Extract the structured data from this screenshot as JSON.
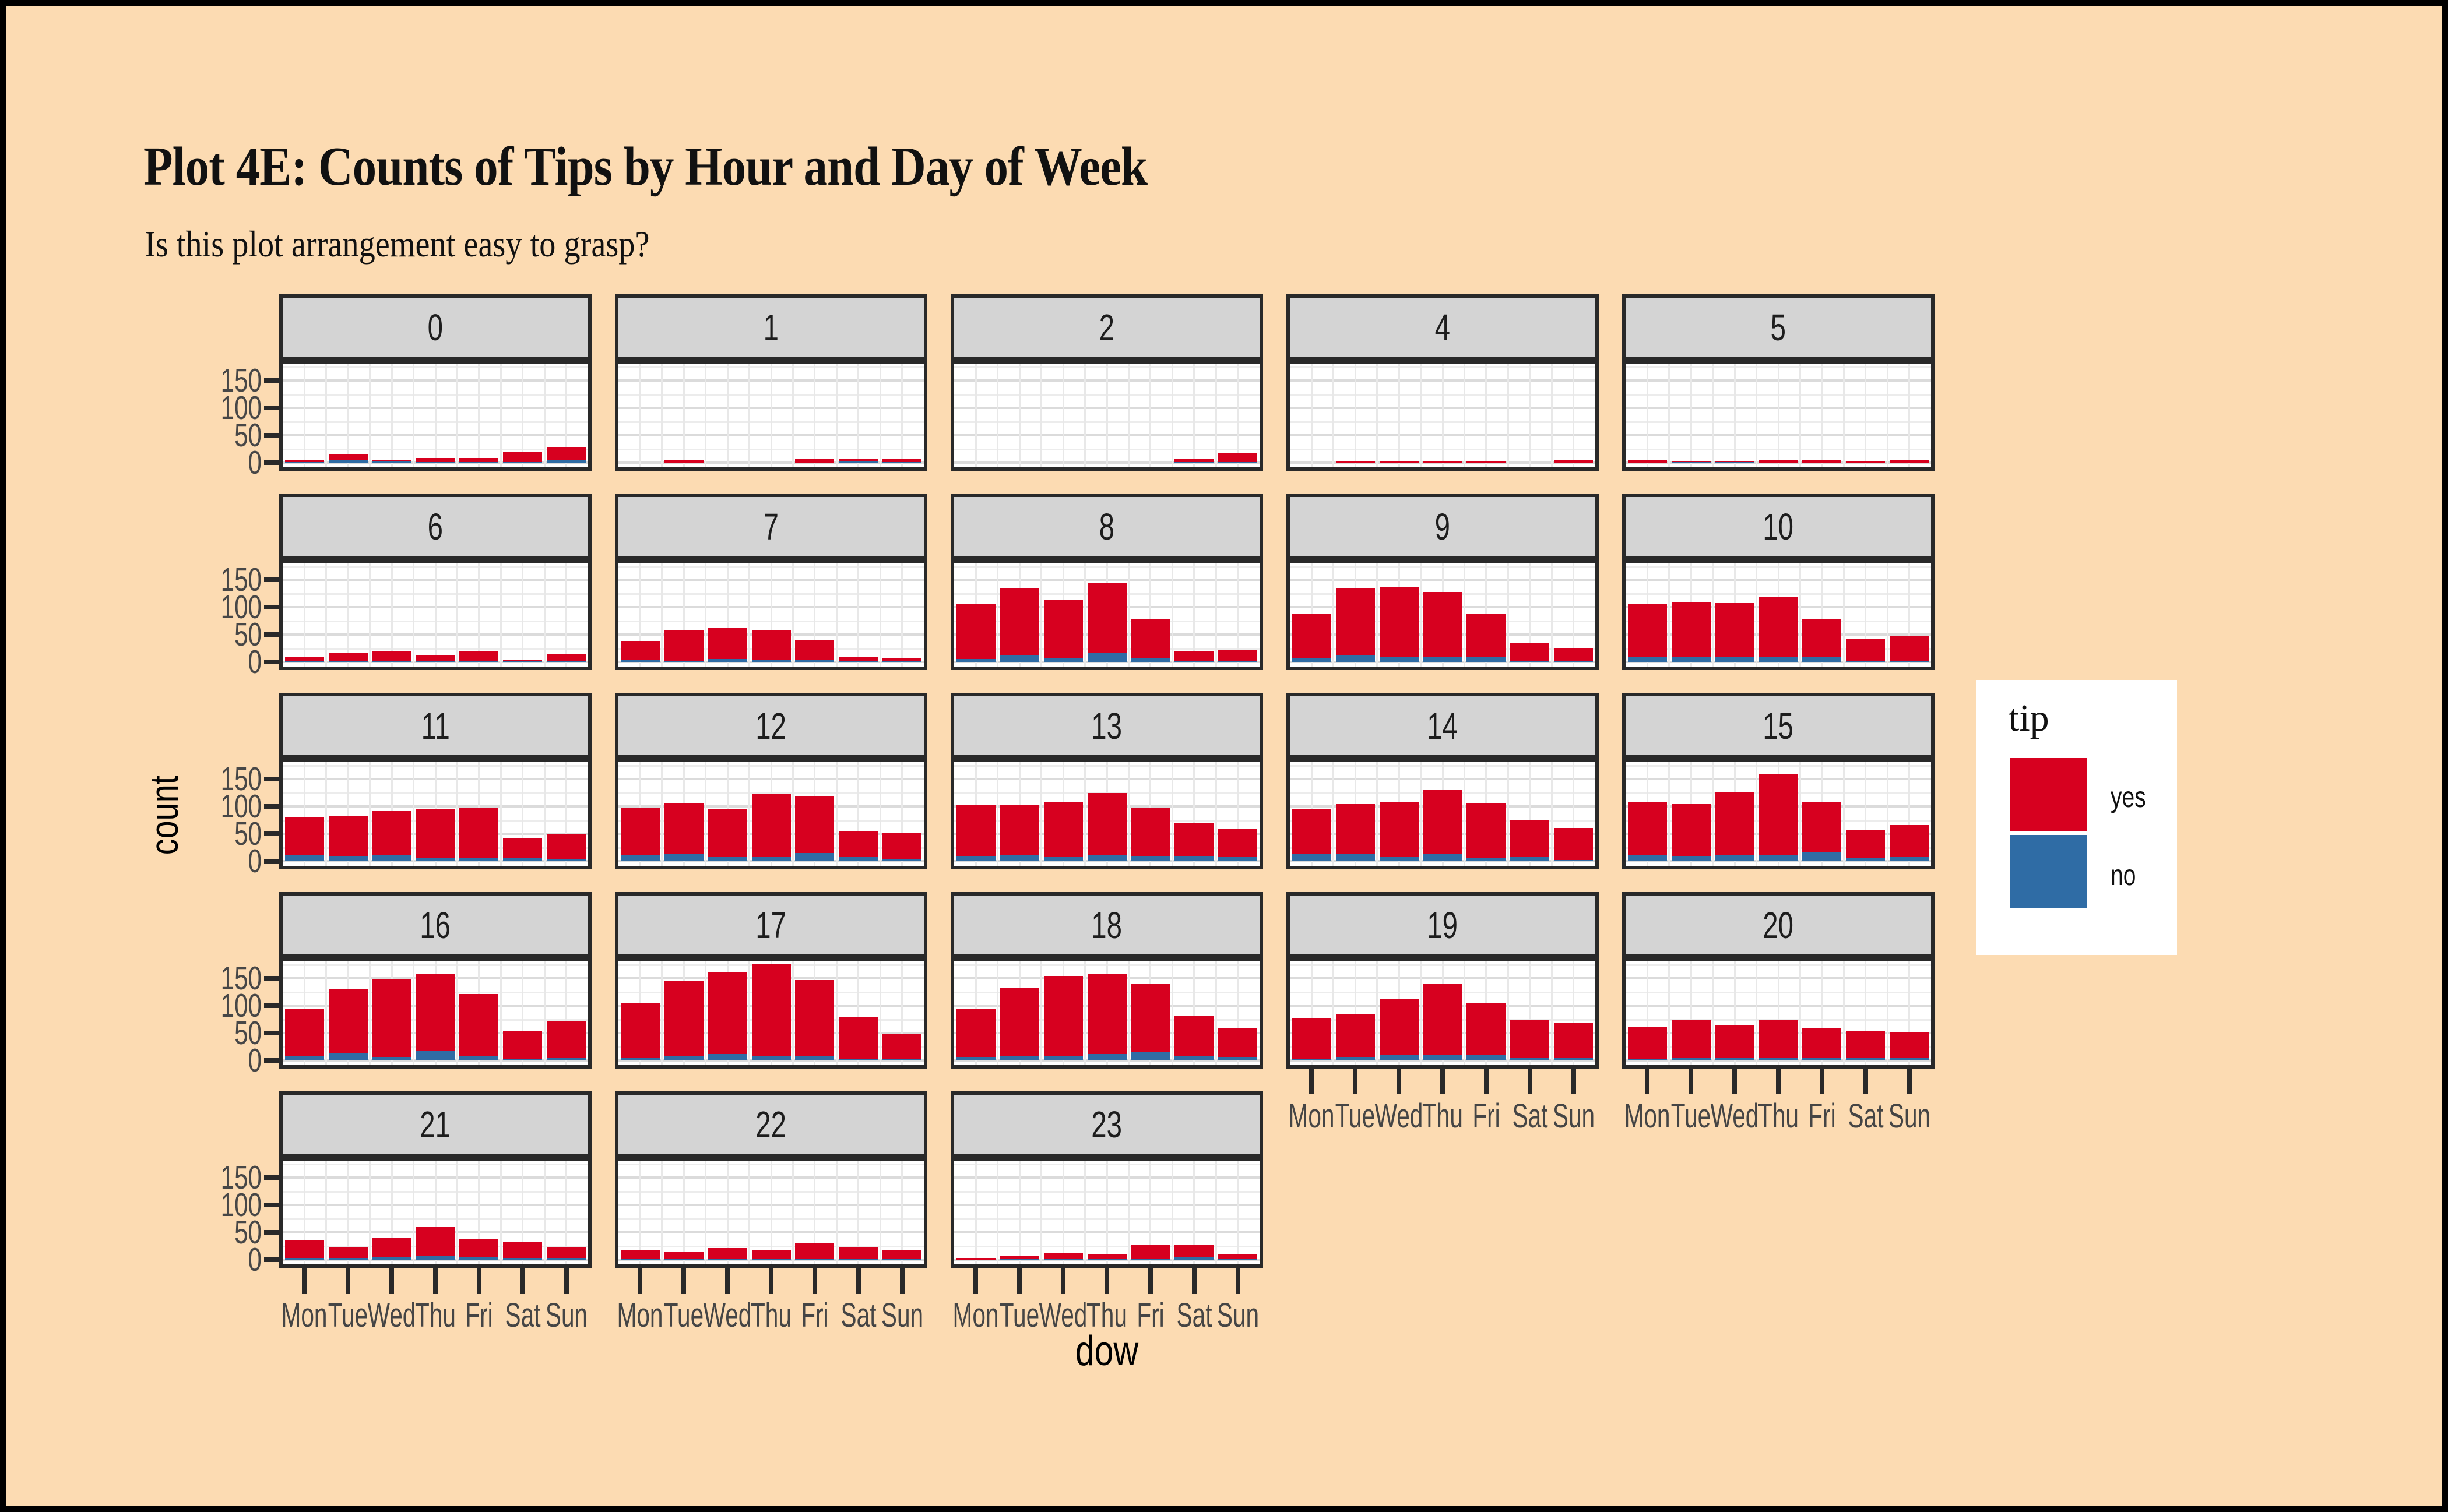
{
  "title": "Plot 4E: Counts of Tips by Hour and Day of Week",
  "subtitle": "Is this plot arrangement easy to grasp?",
  "axes": {
    "x_label": "dow",
    "y_label": "count",
    "y_ticks": [
      150,
      100,
      50,
      0
    ],
    "x_tick_labels": [
      "Mon",
      "Tue",
      "Wed",
      "Thu",
      "Fri",
      "Sat",
      "Sun"
    ]
  },
  "legend": {
    "title": "tip",
    "entries": [
      {
        "label": "yes",
        "color": "#D7001F"
      },
      {
        "label": "no",
        "color": "#2F6CA5"
      }
    ]
  },
  "colors": {
    "background": "#FCDBB2",
    "frame": "#000000",
    "strip_bg": "#D4D4D4",
    "panel_bg": "#FFFFFF",
    "panel_border": "#292929",
    "grid_major": "#DBDBDB",
    "grid_minor": "#ECECEC",
    "tick_label": "#474747",
    "yes": "#D7001F",
    "no": "#2F6CA5"
  },
  "chart_data": {
    "type": "bar",
    "stacked": true,
    "facet_variable": "hour",
    "x_variable": "dow",
    "y_variable": "count",
    "legend_position": "right",
    "grid": true,
    "ylim": [
      0,
      190
    ],
    "categories": [
      "Mon",
      "Tue",
      "Wed",
      "Thu",
      "Fri",
      "Sat",
      "Sun"
    ],
    "facets": [
      {
        "label": "0",
        "yes": [
          4,
          10,
          2,
          8,
          8,
          18,
          24
        ],
        "no": [
          1,
          5,
          2,
          1,
          1,
          1,
          4
        ]
      },
      {
        "label": "1",
        "yes": [
          0,
          5,
          0,
          0,
          6,
          6,
          7
        ],
        "no": [
          0,
          0,
          0,
          0,
          0,
          2,
          1
        ]
      },
      {
        "label": "2",
        "yes": [
          0,
          0,
          0,
          0,
          0,
          5,
          17
        ],
        "no": [
          0,
          0,
          0,
          0,
          0,
          1,
          1
        ]
      },
      {
        "label": "4",
        "yes": [
          0,
          2,
          2,
          3,
          2,
          0,
          4
        ],
        "no": [
          0,
          0,
          0,
          0,
          0,
          0,
          0
        ]
      },
      {
        "label": "5",
        "yes": [
          4,
          2,
          2,
          5,
          5,
          3,
          4
        ],
        "no": [
          0,
          1,
          1,
          0,
          0,
          0,
          0
        ]
      },
      {
        "label": "6",
        "yes": [
          8,
          14,
          17,
          11,
          17,
          3,
          13
        ],
        "no": [
          1,
          2,
          2,
          1,
          2,
          1,
          1
        ]
      },
      {
        "label": "7",
        "yes": [
          35,
          55,
          58,
          53,
          36,
          8,
          5
        ],
        "no": [
          3,
          2,
          5,
          4,
          3,
          1,
          1
        ]
      },
      {
        "label": "8",
        "yes": [
          100,
          122,
          108,
          129,
          71,
          18,
          21
        ],
        "no": [
          5,
          13,
          6,
          16,
          8,
          1,
          1
        ]
      },
      {
        "label": "9",
        "yes": [
          80,
          122,
          127,
          118,
          78,
          33,
          24
        ],
        "no": [
          8,
          12,
          10,
          10,
          10,
          2,
          1
        ]
      },
      {
        "label": "10",
        "yes": [
          95,
          99,
          97,
          108,
          69,
          40,
          46
        ],
        "no": [
          10,
          10,
          10,
          10,
          10,
          2,
          1
        ]
      },
      {
        "label": "11",
        "yes": [
          68,
          72,
          80,
          90,
          92,
          37,
          46
        ],
        "no": [
          12,
          10,
          12,
          6,
          6,
          6,
          3
        ]
      },
      {
        "label": "12",
        "yes": [
          85,
          92,
          88,
          114,
          104,
          47,
          47
        ],
        "no": [
          12,
          13,
          7,
          8,
          15,
          8,
          4
        ]
      },
      {
        "label": "13",
        "yes": [
          93,
          91,
          98,
          113,
          88,
          59,
          52
        ],
        "no": [
          10,
          12,
          9,
          12,
          10,
          10,
          8
        ]
      },
      {
        "label": "14",
        "yes": [
          83,
          91,
          98,
          117,
          101,
          66,
          59
        ],
        "no": [
          13,
          13,
          9,
          13,
          5,
          9,
          2
        ]
      },
      {
        "label": "15",
        "yes": [
          95,
          94,
          115,
          148,
          92,
          52,
          59
        ],
        "no": [
          12,
          10,
          12,
          12,
          17,
          6,
          7
        ]
      },
      {
        "label": "16",
        "yes": [
          87,
          118,
          143,
          142,
          113,
          51,
          66
        ],
        "no": [
          8,
          13,
          6,
          17,
          8,
          2,
          5
        ]
      },
      {
        "label": "17",
        "yes": [
          100,
          138,
          150,
          167,
          139,
          77,
          47
        ],
        "no": [
          5,
          8,
          12,
          9,
          8,
          3,
          2
        ]
      },
      {
        "label": "18",
        "yes": [
          89,
          126,
          145,
          145,
          125,
          74,
          53
        ],
        "no": [
          6,
          7,
          9,
          12,
          15,
          8,
          6
        ]
      },
      {
        "label": "19",
        "yes": [
          75,
          79,
          102,
          129,
          95,
          70,
          65
        ],
        "no": [
          2,
          6,
          10,
          10,
          10,
          5,
          4
        ]
      },
      {
        "label": "20",
        "yes": [
          59,
          68,
          61,
          71,
          56,
          50,
          48
        ],
        "no": [
          2,
          5,
          4,
          4,
          4,
          4,
          4
        ]
      },
      {
        "label": "21",
        "yes": [
          32,
          21,
          36,
          54,
          34,
          29,
          20
        ],
        "no": [
          3,
          3,
          5,
          6,
          4,
          3,
          3
        ]
      },
      {
        "label": "22",
        "yes": [
          16,
          12,
          19,
          15,
          29,
          21,
          16
        ],
        "no": [
          2,
          2,
          2,
          2,
          2,
          2,
          2
        ]
      },
      {
        "label": "23",
        "yes": [
          3,
          6,
          11,
          9,
          25,
          24,
          9
        ],
        "no": [
          0,
          1,
          1,
          1,
          2,
          4,
          1
        ]
      }
    ]
  }
}
